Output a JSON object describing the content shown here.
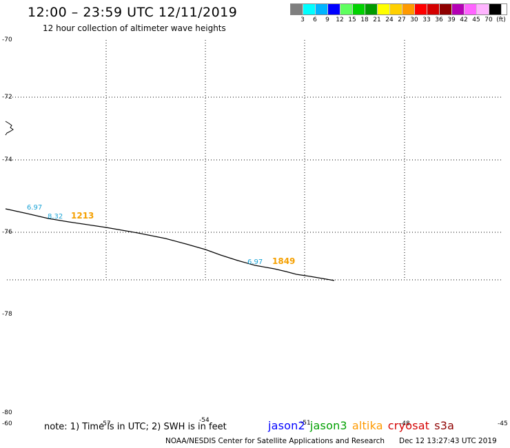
{
  "header": {
    "title": "12:00 – 23:59 UTC 12/11/2019",
    "subtitle": "12 hour collection of altimeter wave heights"
  },
  "scale": {
    "colors": [
      "#7f7f7f",
      "#00ffff",
      "#00b4ff",
      "#0000ff",
      "#5fff5f",
      "#00d200",
      "#009a00",
      "#ffff00",
      "#ffd000",
      "#ff9a00",
      "#ff0000",
      "#d40000",
      "#8e0000",
      "#b400b4",
      "#ff64ff",
      "#ffb4ff",
      "#000000"
    ],
    "labels": [
      "3",
      "6",
      "9",
      "12",
      "15",
      "18",
      "21",
      "24",
      "27",
      "30",
      "33",
      "36",
      "39",
      "42",
      "45",
      "70",
      "(ft)"
    ]
  },
  "map": {
    "lat_labels": [
      "-70",
      "-72",
      "-74",
      "-76",
      "-78",
      "-80"
    ],
    "lon_labels": [
      "-60",
      "-57",
      "-54",
      "-51",
      "-48",
      "-45"
    ],
    "wave_labels": [
      {
        "text": "6.97",
        "color": "#1aa3d6"
      },
      {
        "text": "8.32",
        "color": "#1aa3d6"
      },
      {
        "text": "1213",
        "color": "#f5a000"
      },
      {
        "text": "6.97",
        "color": "#1aa3d6"
      },
      {
        "text": "1849",
        "color": "#f5a000"
      }
    ]
  },
  "footer": {
    "note": "note: 1) Time is in UTC; 2) SWH is in feet",
    "satellites": [
      {
        "name": "jason2",
        "color": "#0000ff"
      },
      {
        "name": "jason3",
        "color": "#00a000"
      },
      {
        "name": "altika",
        "color": "#ff9a00"
      },
      {
        "name": "cryosat",
        "color": "#d40000"
      },
      {
        "name": "s3a",
        "color": "#8e0000"
      }
    ],
    "credit": "NOAA/NESDIS Center for Satellite Applications and Research",
    "timestamp": "Dec 12 13:27:43 UTC 2019"
  }
}
